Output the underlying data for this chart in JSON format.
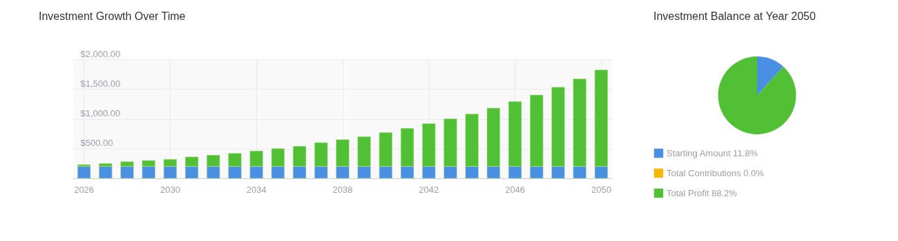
{
  "chart_data": [
    {
      "type": "bar",
      "title": "Investment Growth Over Time",
      "stacked": true,
      "grid": true,
      "categories": [
        "2026",
        null,
        null,
        null,
        "2030",
        null,
        null,
        null,
        "2034",
        null,
        null,
        null,
        "2038",
        null,
        null,
        null,
        "2042",
        null,
        null,
        null,
        "2046",
        null,
        null,
        null,
        "2050"
      ],
      "ylim": [
        0,
        2000
      ],
      "yticks": [
        {
          "value": 0,
          "label": null
        },
        {
          "value": 500,
          "label": "$500.00"
        },
        {
          "value": 1000,
          "label": "$1,000.00"
        },
        {
          "value": 1500,
          "label": "$1,500.00"
        },
        {
          "value": 2000,
          "label": "$2,000.00"
        }
      ],
      "series": [
        {
          "color": "#4a90e2",
          "values": [
            200,
            200,
            200,
            200,
            200,
            200,
            200,
            200,
            200,
            200,
            200,
            200,
            200,
            200,
            200,
            200,
            200,
            200,
            200,
            200,
            200,
            200,
            200,
            200,
            200
          ]
        },
        {
          "color": "#52c035",
          "values": [
            30,
            50,
            80,
            100,
            120,
            160,
            190,
            220,
            260,
            300,
            340,
            400,
            450,
            500,
            570,
            640,
            720,
            800,
            880,
            980,
            1090,
            1200,
            1330,
            1470,
            1620
          ]
        }
      ]
    },
    {
      "type": "pie",
      "title": "Investment Balance at Year 2050",
      "legend": "bottom",
      "categories": [
        "Starting Amount",
        "Total Contributions",
        "Total Profit"
      ],
      "values": [
        11.8,
        0.0,
        88.2
      ],
      "value_labels": [
        "11.8%",
        "0.0%",
        "88.2%"
      ],
      "colors": [
        "#4a90e2",
        "#f5b800",
        "#52c035"
      ]
    }
  ]
}
